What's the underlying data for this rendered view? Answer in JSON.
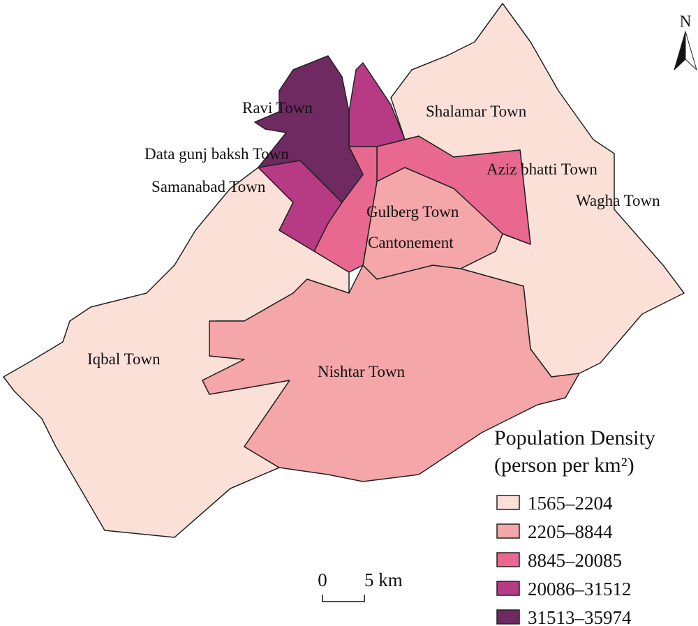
{
  "north": "N",
  "towns": [
    {
      "label": "Iqbal Town",
      "color": "#fbe0d8"
    },
    {
      "label": "Shalamar Town",
      "color": "#fbe0d8"
    },
    {
      "label": "Wagha Town",
      "color": "#fbe0d8"
    },
    {
      "label": "Nishtar Town",
      "color": "#f4a6a9"
    },
    {
      "label": "Cantonement",
      "color": "#f4a6a9"
    },
    {
      "label": "Aziz bhatti Town",
      "color": "#e8688f"
    },
    {
      "label": "Gulberg Town",
      "color": "#e8688f"
    },
    {
      "label": "Samanabad Town",
      "color": "#b73a84"
    },
    {
      "label": "Data gunj baksh Town",
      "color": "#b73a84"
    },
    {
      "label": "Ravi Town",
      "color": "#6e2a61"
    }
  ],
  "legend": {
    "title": "Population Density",
    "subtitle": "(person per km²)",
    "items": [
      {
        "label": "1565–2204",
        "color": "#fbe0d8"
      },
      {
        "label": "2205–8844",
        "color": "#f4a6a9"
      },
      {
        "label": "8845–20085",
        "color": "#e8688f"
      },
      {
        "label": "20086–31512",
        "color": "#b73a84"
      },
      {
        "label": "31513–35974",
        "color": "#6e2a61"
      }
    ]
  },
  "scale": {
    "labels": [
      "0",
      "5 km"
    ]
  }
}
